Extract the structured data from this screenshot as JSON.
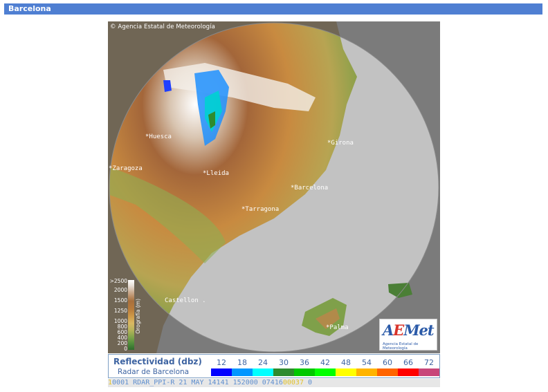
{
  "header": {
    "title": "Barcelona"
  },
  "map": {
    "copyright": "© Agencia Estatal de Meteorología",
    "cities": [
      {
        "id": "huesca",
        "label": "*Huesca"
      },
      {
        "id": "girona",
        "label": "*Girona"
      },
      {
        "id": "zaragoza",
        "label": "*Zaragoza"
      },
      {
        "id": "lleida",
        "label": "*Lleida"
      },
      {
        "id": "barcelona",
        "label": "*Barcelona"
      },
      {
        "id": "tarragona",
        "label": "*Tarragona"
      },
      {
        "id": "castellon",
        "label": "Castellon ."
      },
      {
        "id": "palma",
        "label": "*Palma"
      }
    ],
    "orography_legend": {
      "title": "Orografía (m)",
      "levels": [
        ">2500",
        "2000",
        "1500",
        "1250",
        "1000",
        "800",
        "600",
        "400",
        "200",
        "0"
      ]
    }
  },
  "logo": {
    "main_prefix": "A",
    "main_accent": "E",
    "main_suffix": "Met",
    "subtitle": "Agencia Estatal de Meteorología"
  },
  "legend": {
    "title": "Reflectividad (dbz)",
    "subtitle": "Radar de Barcelona",
    "scale": [
      {
        "value": "12",
        "color": "#0000ff"
      },
      {
        "value": "18",
        "color": "#0096ff"
      },
      {
        "value": "24",
        "color": "#00ffff"
      },
      {
        "value": "30",
        "color": "#2e8b2e"
      },
      {
        "value": "36",
        "color": "#00c800"
      },
      {
        "value": "42",
        "color": "#00ff00"
      },
      {
        "value": "48",
        "color": "#ffff00"
      },
      {
        "value": "54",
        "color": "#ffb400"
      },
      {
        "value": "60",
        "color": "#ff6400"
      },
      {
        "value": "66",
        "color": "#ff0000"
      },
      {
        "value": "72",
        "color": "#c8467a"
      }
    ]
  },
  "status": {
    "prefix": "1",
    "text": "0001 RDAR_PPI-R   21 MAY 14141 152000 07416",
    "highlight": "00037",
    "suffix": " 0"
  }
}
